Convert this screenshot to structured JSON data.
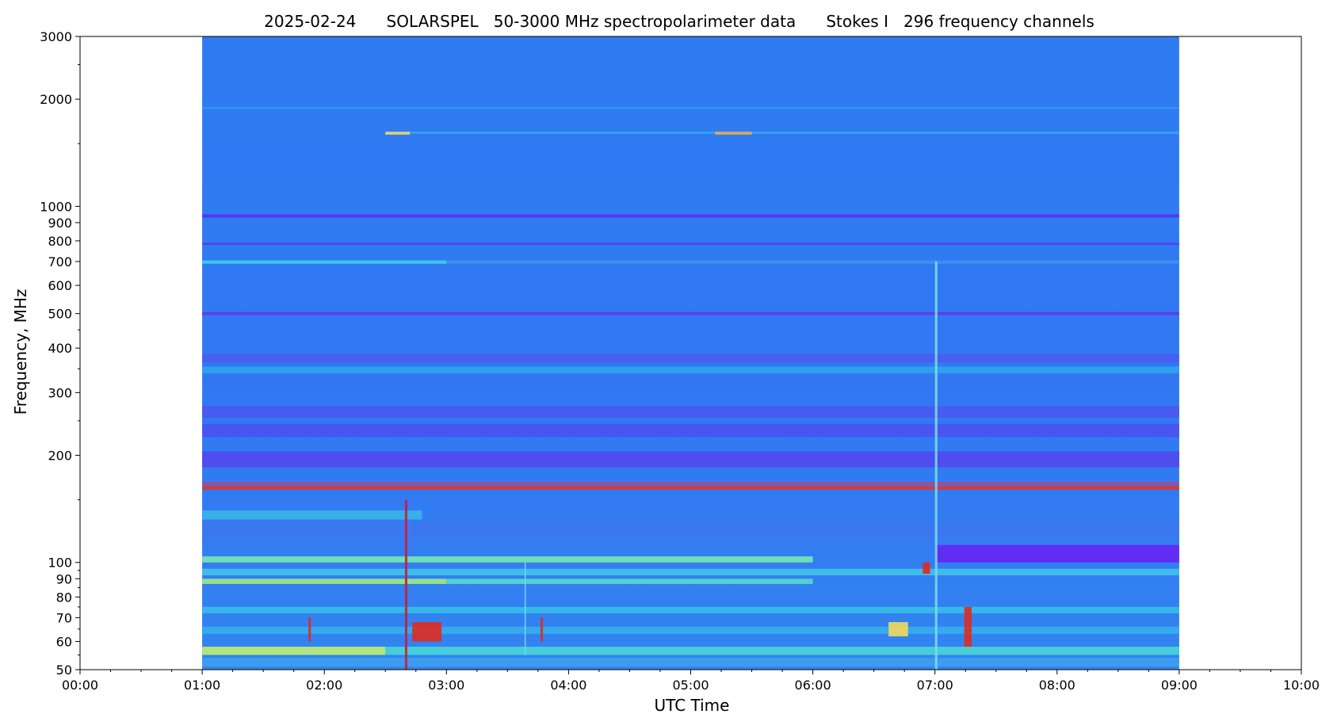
{
  "chart_data": {
    "type": "heatmap",
    "title": "2025-02-24      SOLARSPEL   50-3000 MHz spectropolarimeter data      Stokes I   296 frequency channels",
    "xlabel": "UTC Time",
    "ylabel": "Frequency, MHz",
    "x_axis": {
      "unit": "hours",
      "range": [
        0,
        10
      ],
      "data_range": [
        1,
        9
      ],
      "ticks": [
        {
          "value": 0,
          "label": "00:00"
        },
        {
          "value": 1,
          "label": "01:00"
        },
        {
          "value": 2,
          "label": "02:00"
        },
        {
          "value": 3,
          "label": "03:00"
        },
        {
          "value": 4,
          "label": "04:00"
        },
        {
          "value": 5,
          "label": "05:00"
        },
        {
          "value": 6,
          "label": "06:00"
        },
        {
          "value": 7,
          "label": "07:00"
        },
        {
          "value": 8,
          "label": "08:00"
        },
        {
          "value": 9,
          "label": "09:00"
        },
        {
          "value": 10,
          "label": "10:00"
        }
      ],
      "minor_step": 0.25
    },
    "y_axis": {
      "scale": "log",
      "unit": "MHz",
      "range": [
        50,
        3000
      ],
      "ticks": [
        {
          "value": 50,
          "label": "50"
        },
        {
          "value": 60,
          "label": "60"
        },
        {
          "value": 70,
          "label": "70"
        },
        {
          "value": 80,
          "label": "80"
        },
        {
          "value": 90,
          "label": "90"
        },
        {
          "value": 100,
          "label": "100"
        },
        {
          "value": 200,
          "label": "200"
        },
        {
          "value": 300,
          "label": "300"
        },
        {
          "value": 400,
          "label": "400"
        },
        {
          "value": 500,
          "label": "500"
        },
        {
          "value": 600,
          "label": "600"
        },
        {
          "value": 700,
          "label": "700"
        },
        {
          "value": 800,
          "label": "800"
        },
        {
          "value": 900,
          "label": "900"
        },
        {
          "value": 1000,
          "label": "1000"
        },
        {
          "value": 2000,
          "label": "2000"
        },
        {
          "value": 3000,
          "label": "3000"
        }
      ],
      "minor_ticks": [
        1500,
        2500,
        150,
        250,
        350,
        450,
        55,
        65,
        75,
        85,
        95
      ]
    },
    "colormap": "rainbow",
    "background_color": "#2F7BF2",
    "grid": false,
    "bands": [
      {
        "f_low": 930,
        "f_high": 950,
        "t_start": 1,
        "t_end": 9,
        "color": "#5A2FF0"
      },
      {
        "f_low": 780,
        "f_high": 790,
        "t_start": 1,
        "t_end": 9,
        "color": "#6130F0"
      },
      {
        "f_low": 690,
        "f_high": 705,
        "t_start": 1,
        "t_end": 3,
        "color": "#3FD6E8"
      },
      {
        "f_low": 690,
        "f_high": 705,
        "t_start": 3,
        "t_end": 9,
        "color": "#3C95F0"
      },
      {
        "f_low": 495,
        "f_high": 505,
        "t_start": 1,
        "t_end": 9,
        "color": "#5F35EF"
      },
      {
        "f_low": 365,
        "f_high": 385,
        "t_start": 1,
        "t_end": 9,
        "color": "#4A5CF0"
      },
      {
        "f_low": 340,
        "f_high": 355,
        "t_start": 1,
        "t_end": 9,
        "color": "#2FA6EE"
      },
      {
        "f_low": 255,
        "f_high": 275,
        "t_start": 1,
        "t_end": 9,
        "color": "#4C56F1"
      },
      {
        "f_low": 225,
        "f_high": 245,
        "t_start": 1,
        "t_end": 9,
        "color": "#4E4FF1"
      },
      {
        "f_low": 185,
        "f_high": 205,
        "t_start": 1,
        "t_end": 9,
        "color": "#5544F0"
      },
      {
        "f_low": 160,
        "f_high": 164,
        "t_start": 1,
        "t_end": 9,
        "color": "#E0352A"
      },
      {
        "f_low": 165,
        "f_high": 168,
        "t_start": 1,
        "t_end": 9,
        "color": "#C74070"
      },
      {
        "f_low": 132,
        "f_high": 140,
        "t_start": 1,
        "t_end": 2.8,
        "color": "#39B8E8"
      },
      {
        "f_low": 115,
        "f_high": 130,
        "t_start": 1,
        "t_end": 9,
        "color": "#3C78F0"
      },
      {
        "f_low": 100,
        "f_high": 112,
        "t_start": 7,
        "t_end": 9,
        "color": "#6A1EF5"
      },
      {
        "f_low": 100,
        "f_high": 104,
        "t_start": 1,
        "t_end": 6,
        "color": "#7DF0A8"
      },
      {
        "f_low": 92,
        "f_high": 96,
        "t_start": 1,
        "t_end": 9,
        "color": "#45C6EA"
      },
      {
        "f_low": 87,
        "f_high": 90,
        "t_start": 1,
        "t_end": 3,
        "color": "#A6F27A"
      },
      {
        "f_low": 87,
        "f_high": 90,
        "t_start": 3,
        "t_end": 6,
        "color": "#5AE0C8"
      },
      {
        "f_low": 72,
        "f_high": 75,
        "t_start": 1,
        "t_end": 9,
        "color": "#38C2E8"
      },
      {
        "f_low": 63,
        "f_high": 66,
        "t_start": 1,
        "t_end": 9,
        "color": "#37B0EE"
      },
      {
        "f_low": 55,
        "f_high": 58,
        "t_start": 1,
        "t_end": 2.5,
        "color": "#C9F56A"
      },
      {
        "f_low": 55,
        "f_high": 58,
        "t_start": 2.5,
        "t_end": 9,
        "color": "#4BD9D3"
      },
      {
        "f_low": 51,
        "f_high": 54,
        "t_start": 1,
        "t_end": 9,
        "color": "#3FA0F0"
      },
      {
        "f_low": 1600,
        "f_high": 1620,
        "t_start": 2.5,
        "t_end": 9,
        "color": "#3BB0EE"
      },
      {
        "f_low": 1880,
        "f_high": 1900,
        "t_start": 1,
        "t_end": 9,
        "color": "#36A1EE"
      }
    ],
    "bursts": [
      {
        "t_start": 2.72,
        "t_end": 2.96,
        "f_low": 60,
        "f_high": 68,
        "color": "#E02A1E"
      },
      {
        "t_start": 1.87,
        "t_end": 1.89,
        "f_low": 60,
        "f_high": 70,
        "color": "#E02A1E"
      },
      {
        "t_start": 3.77,
        "t_end": 3.79,
        "f_low": 60,
        "f_high": 70,
        "color": "#E02A1E"
      },
      {
        "t_start": 6.62,
        "t_end": 6.78,
        "f_low": 62,
        "f_high": 68,
        "color": "#F2D85A"
      },
      {
        "t_start": 6.9,
        "t_end": 6.96,
        "f_low": 93,
        "f_high": 100,
        "color": "#E02A1E"
      },
      {
        "t_start": 7.24,
        "t_end": 7.3,
        "f_low": 58,
        "f_high": 75,
        "color": "#E02A1E"
      },
      {
        "t_start": 7.0,
        "t_end": 7.02,
        "f_low": 50,
        "f_high": 700,
        "color": "#7AD8F0"
      },
      {
        "t_start": 2.66,
        "t_end": 2.68,
        "f_low": 50,
        "f_high": 150,
        "color": "#C02040"
      },
      {
        "t_start": 3.64,
        "t_end": 3.65,
        "f_low": 55,
        "f_high": 100,
        "color": "#7AD8F0"
      },
      {
        "t_start": 2.5,
        "t_end": 2.7,
        "f_low": 1590,
        "f_high": 1620,
        "color": "#F2D85A"
      },
      {
        "t_start": 5.2,
        "t_end": 5.5,
        "f_low": 1590,
        "f_high": 1620,
        "color": "#F2A84A"
      }
    ]
  }
}
